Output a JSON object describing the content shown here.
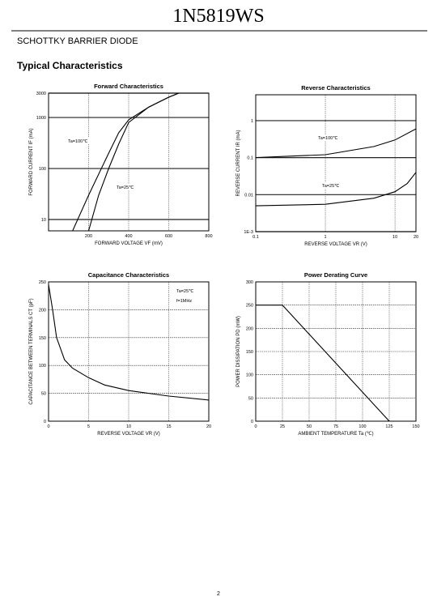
{
  "header": {
    "title": "1N5819WS",
    "subtitle": "SCHOTTKY BARRIER DIODE",
    "section": "Typical Characteristics"
  },
  "page_number": "2",
  "chart_data": [
    {
      "type": "line",
      "title": "Forward Characteristics",
      "x_label": "FORWARD VOLTAGE VF (mV)",
      "y_label": "FORWARD CURRENT IF (mA)",
      "xlim": [
        0,
        800
      ],
      "xticks": [
        200,
        400,
        600,
        800
      ],
      "ylim": [
        6,
        3000
      ],
      "yticks": [
        10,
        100,
        1000,
        3000
      ],
      "ylog": true,
      "grid": true,
      "series": [
        {
          "name": "Ta=100℃",
          "color": "#000000",
          "x": [
            120,
            200,
            300,
            350,
            400,
            500,
            600,
            650
          ],
          "values": [
            6,
            30,
            200,
            500,
            900,
            1600,
            2500,
            3000
          ]
        },
        {
          "name": "Ta=25℃",
          "color": "#000000",
          "x": [
            200,
            250,
            300,
            350,
            400,
            500,
            600,
            650
          ],
          "values": [
            6,
            30,
            100,
            300,
            800,
            1600,
            2500,
            3000
          ]
        }
      ]
    },
    {
      "type": "line",
      "title": "Reverse    Characteristics",
      "x_label": "REVERSE VOLTAGE VR (V)",
      "y_label": "REVERSE CURRENT IR (mA)",
      "xlim": [
        0.1,
        20
      ],
      "xticks": [
        0.1,
        1,
        10,
        20
      ],
      "xlog": true,
      "ylim": [
        0.001,
        5
      ],
      "yticks": [
        {
          "value": 0.001,
          "label": "1E-3"
        },
        0.01,
        0.1,
        1
      ],
      "ylog": true,
      "grid": true,
      "series": [
        {
          "name": "Ta=100℃",
          "color": "#000000",
          "x": [
            0.1,
            1,
            5,
            10,
            20
          ],
          "values": [
            0.1,
            0.12,
            0.2,
            0.3,
            0.6
          ]
        },
        {
          "name": "Ta=25℃",
          "color": "#000000",
          "x": [
            0.1,
            1,
            5,
            10,
            15,
            20
          ],
          "values": [
            0.005,
            0.0055,
            0.008,
            0.012,
            0.02,
            0.04
          ]
        }
      ]
    },
    {
      "type": "line",
      "title": "Capacitance Characteristics",
      "x_label": "REVERSE VOLTAGE VR (V)",
      "y_label": "CAPACITANCE BETWEEN TERMINALS CT (pF)",
      "xlim": [
        0,
        20
      ],
      "xticks": [
        0,
        5,
        10,
        15,
        20
      ],
      "ylim": [
        0,
        250
      ],
      "yticks": [
        0,
        50,
        100,
        150,
        200,
        250
      ],
      "grid": true,
      "annotations": [
        "Ta=25℃",
        "f=1MHz"
      ],
      "series": [
        {
          "color": "#000000",
          "x": [
            0,
            0.5,
            1,
            2,
            3,
            5,
            7,
            10,
            15,
            20
          ],
          "values": [
            245,
            200,
            150,
            110,
            95,
            78,
            65,
            55,
            45,
            38
          ]
        }
      ]
    },
    {
      "type": "line",
      "title": "Power Derating Curve",
      "x_label": "AMBIENT TEMPERATURE Ta (℃)",
      "y_label": "POWER DISSIPATION PD (mW)",
      "xlim": [
        0,
        150
      ],
      "xticks": [
        0,
        25,
        50,
        75,
        100,
        125,
        150
      ],
      "ylim": [
        0,
        300
      ],
      "yticks": [
        0,
        50,
        100,
        150,
        200,
        250,
        300
      ],
      "grid": true,
      "series": [
        {
          "color": "#000000",
          "x": [
            0,
            25,
            125
          ],
          "values": [
            250,
            250,
            0
          ]
        }
      ]
    }
  ]
}
